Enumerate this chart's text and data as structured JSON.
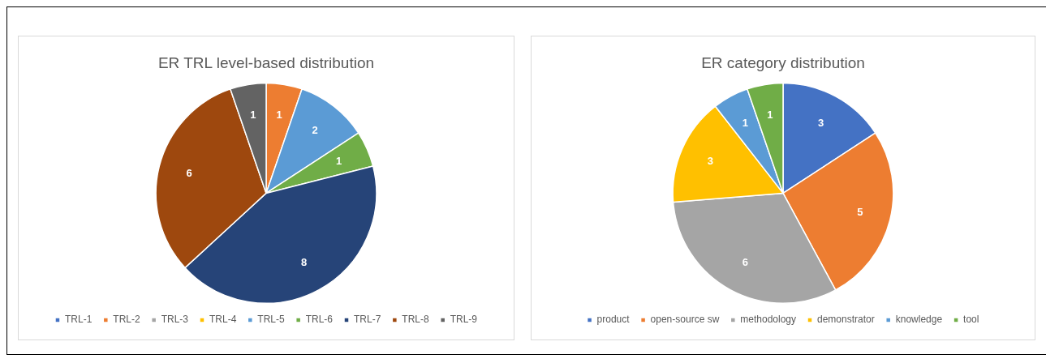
{
  "chart_data": [
    {
      "type": "pie",
      "title": "ER TRL level-based distribution",
      "categories": [
        "TRL-1",
        "TRL-2",
        "TRL-3",
        "TRL-4",
        "TRL-5",
        "TRL-6",
        "TRL-7",
        "TRL-8",
        "TRL-9"
      ],
      "values": [
        0,
        1,
        0,
        0,
        2,
        1,
        8,
        6,
        1
      ],
      "colors": [
        "#4472c4",
        "#ed7d31",
        "#a5a5a5",
        "#ffc000",
        "#5b9bd5",
        "#70ad47",
        "#264478",
        "#9e480e",
        "#636363"
      ],
      "value_labels": [
        null,
        "1",
        null,
        null,
        "2",
        "1",
        "8",
        "6",
        "1"
      ],
      "legend": "bottom"
    },
    {
      "type": "pie",
      "title": "ER category distribution",
      "categories": [
        "product",
        "open-source sw",
        "methodology",
        "demonstrator",
        "knowledge",
        "tool"
      ],
      "values": [
        3,
        5,
        6,
        3,
        1,
        1
      ],
      "colors": [
        "#4472c4",
        "#ed7d31",
        "#a5a5a5",
        "#ffc000",
        "#5b9bd5",
        "#70ad47"
      ],
      "data_labels": true,
      "legend": "bottom"
    }
  ]
}
